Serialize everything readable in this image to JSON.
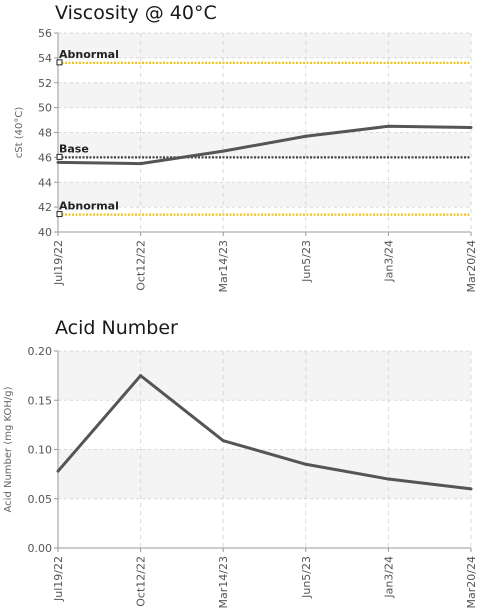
{
  "chart_data": [
    {
      "type": "line",
      "title": "Viscosity @ 40°C",
      "xlabel": "",
      "ylabel": "cSt (40°C)",
      "categories": [
        "Jul19/22",
        "Oct12/22",
        "Mar14/23",
        "Jun5/23",
        "Jan3/24",
        "Mar20/24"
      ],
      "ylim": [
        40,
        56
      ],
      "yticks": [
        40,
        42,
        44,
        46,
        48,
        50,
        52,
        54,
        56
      ],
      "ytick_labels": [
        "40",
        "42",
        "44",
        "46",
        "48",
        "50",
        "52",
        "54",
        "56"
      ],
      "grid": true,
      "series": [
        {
          "values": [
            45.6,
            45.5,
            46.5,
            47.7,
            48.5,
            48.4
          ],
          "color": "#555555"
        }
      ],
      "reference_lines": [
        {
          "label": "Abnormal",
          "value": 53.6,
          "color": "#f0c419"
        },
        {
          "label": "Base",
          "value": 46.0,
          "color": "#444444"
        },
        {
          "label": "Abnormal",
          "value": 41.4,
          "color": "#f0c419"
        }
      ]
    },
    {
      "type": "line",
      "title": "Acid Number",
      "xlabel": "",
      "ylabel": "Acid Number (mg KOH/g)",
      "categories": [
        "Jul19/22",
        "Oct12/22",
        "Mar14/23",
        "Jun5/23",
        "Jan3/24",
        "Mar20/24"
      ],
      "ylim": [
        0,
        0.2
      ],
      "yticks": [
        0,
        0.05,
        0.1,
        0.15,
        0.2
      ],
      "ytick_labels": [
        "0.00",
        "0.05",
        "0.10",
        "0.15",
        "0.20"
      ],
      "grid": true,
      "series": [
        {
          "values": [
            0.078,
            0.175,
            0.109,
            0.085,
            0.07,
            0.06
          ],
          "color": "#555555"
        }
      ],
      "reference_lines": []
    }
  ]
}
